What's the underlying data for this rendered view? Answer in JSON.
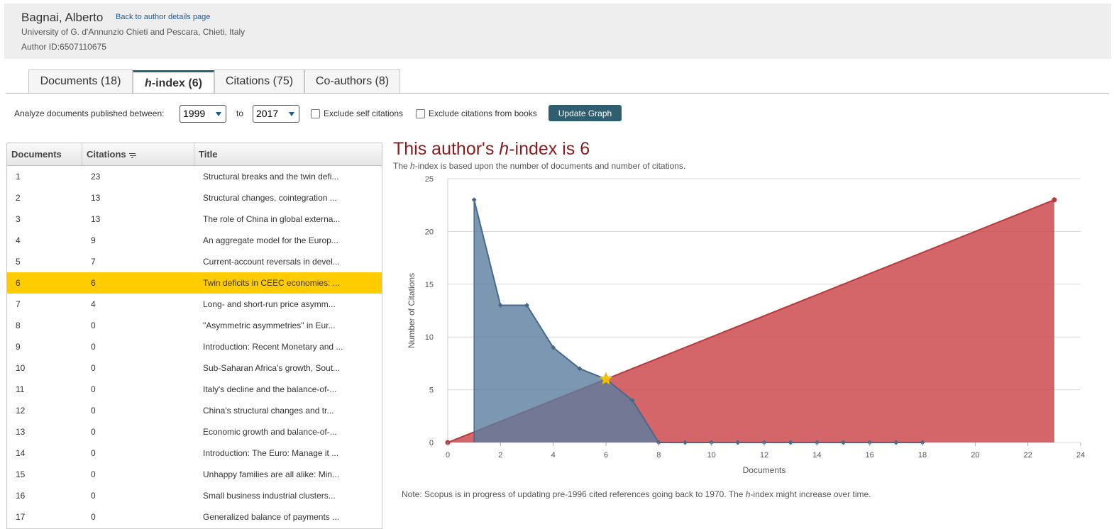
{
  "author": {
    "name": "Bagnai, Alberto",
    "back_link": "Back to author details page",
    "affiliation": "University of G. d'Annunzio Chieti and Pescara, Chieti, Italy",
    "author_id": "Author ID:6507110675"
  },
  "tabs": [
    {
      "label": "Documents (18)"
    },
    {
      "label_italic": "h",
      "label_rest": "-index (6)"
    },
    {
      "label": "Citations (75)"
    },
    {
      "label": "Co-authors (8)"
    }
  ],
  "filters": {
    "analyze_label": "Analyze documents published between:",
    "from_year": "1999",
    "to_label": "to",
    "to_year": "2017",
    "exclude_self": "Exclude self citations",
    "exclude_books": "Exclude citations from books",
    "update_button": "Update Graph"
  },
  "table": {
    "headers": [
      "Documents",
      "Citations",
      "Title"
    ],
    "highlight_row": 6,
    "rows": [
      {
        "doc": "1",
        "cit": "23",
        "title": "Structural breaks and the twin defi..."
      },
      {
        "doc": "2",
        "cit": "13",
        "title": "Structural changes, cointegration ..."
      },
      {
        "doc": "3",
        "cit": "13",
        "title": "The role of China in global externa..."
      },
      {
        "doc": "4",
        "cit": "9",
        "title": "An aggregate model for the Europ..."
      },
      {
        "doc": "5",
        "cit": "7",
        "title": "Current-account reversals in devel..."
      },
      {
        "doc": "6",
        "cit": "6",
        "title": "Twin deficits in CEEC economies: ..."
      },
      {
        "doc": "7",
        "cit": "4",
        "title": "Long- and short-run price asymm..."
      },
      {
        "doc": "8",
        "cit": "0",
        "title": "\"Asymmetric asymmetries\" in Eur..."
      },
      {
        "doc": "9",
        "cit": "0",
        "title": "Introduction: Recent Monetary and ..."
      },
      {
        "doc": "10",
        "cit": "0",
        "title": "Sub-Saharan Africa's growth, Sout..."
      },
      {
        "doc": "11",
        "cit": "0",
        "title": "Italy's decline and the balance-of-..."
      },
      {
        "doc": "12",
        "cit": "0",
        "title": "China's structural changes and tr..."
      },
      {
        "doc": "13",
        "cit": "0",
        "title": "Economic growth and balance-of-..."
      },
      {
        "doc": "14",
        "cit": "0",
        "title": "Introduction: The Euro: Manage it ..."
      },
      {
        "doc": "15",
        "cit": "0",
        "title": "Unhappy families are all alike: Min..."
      },
      {
        "doc": "16",
        "cit": "0",
        "title": "Small business industrial clusters..."
      },
      {
        "doc": "17",
        "cit": "0",
        "title": "Generalized balance of payments ..."
      }
    ]
  },
  "hindex": {
    "title_pre": "This author's ",
    "title_italic": "h",
    "title_post": "-index is 6",
    "sub_pre": "The ",
    "sub_italic": "h",
    "sub_post": "-index is based upon the number of documents and number of citations.",
    "note_pre": "Note: Scopus is in progress of updating pre-1996 cited references going back to 1970. The ",
    "note_italic": "h",
    "note_post": "-index might increase over time."
  },
  "colors": {
    "citations_area": "#5a7d9f",
    "diagonal_area": "#cc4b4f",
    "highlight": "#ffcc00",
    "star": "#f5c400"
  },
  "chart_data": {
    "type": "area",
    "xlabel": "Documents",
    "ylabel": "Number of Citations",
    "xlim": [
      0,
      24
    ],
    "ylim": [
      0,
      25
    ],
    "x_ticks": [
      0,
      2,
      4,
      6,
      8,
      10,
      12,
      14,
      16,
      18,
      20,
      22,
      24
    ],
    "y_ticks": [
      0,
      5,
      10,
      15,
      20,
      25
    ],
    "grid": true,
    "series": [
      {
        "x": [
          1,
          2,
          3,
          4,
          5,
          6,
          7,
          8,
          9,
          10,
          11,
          12,
          13,
          14,
          15,
          16,
          17,
          18
        ],
        "values": [
          23,
          13,
          13,
          9,
          7,
          6,
          4,
          0,
          0,
          0,
          0,
          0,
          0,
          0,
          0,
          0,
          0,
          0
        ]
      },
      {
        "x": [
          0,
          23
        ],
        "values": [
          0,
          23
        ]
      }
    ],
    "h_point": {
      "x": 6,
      "y": 6
    }
  }
}
